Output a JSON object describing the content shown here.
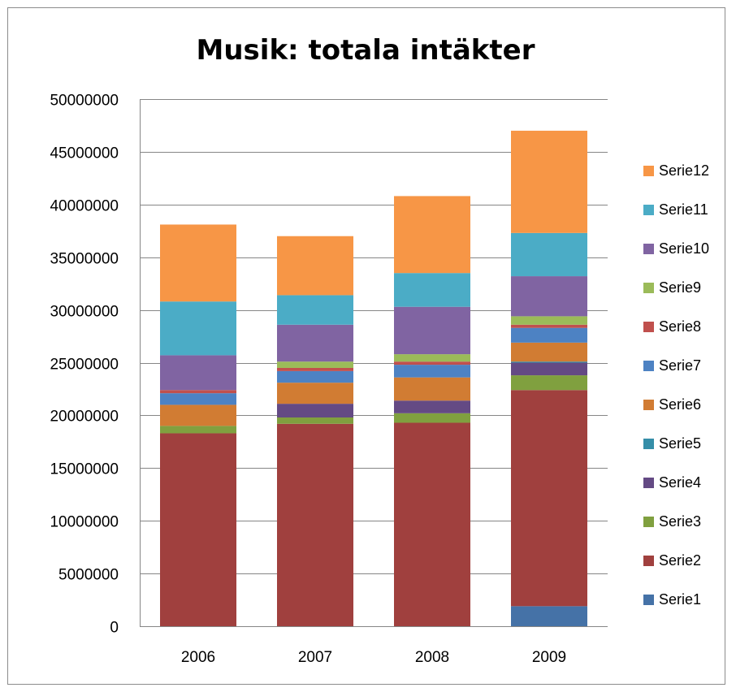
{
  "chart_data": {
    "type": "bar",
    "stacked": true,
    "title": "Musik: totala intäkter",
    "xlabel": "",
    "ylabel": "",
    "categories": [
      "2006",
      "2007",
      "2008",
      "2009"
    ],
    "ylim": [
      0,
      50000000
    ],
    "yticks": [
      0,
      5000000,
      10000000,
      15000000,
      20000000,
      25000000,
      30000000,
      35000000,
      40000000,
      45000000,
      50000000
    ],
    "grid": true,
    "legend_position": "right",
    "series": [
      {
        "name": "Serie1",
        "color": "#4572a7",
        "values": [
          0,
          0,
          0,
          1900000
        ]
      },
      {
        "name": "Serie2",
        "color": "#a0403e",
        "values": [
          18300000,
          19200000,
          19300000,
          20500000
        ]
      },
      {
        "name": "Serie3",
        "color": "#80a03f",
        "values": [
          700000,
          600000,
          900000,
          1400000
        ]
      },
      {
        "name": "Serie4",
        "color": "#644a84",
        "values": [
          0,
          1300000,
          1200000,
          1200000
        ]
      },
      {
        "name": "Serie5",
        "color": "#358ea8",
        "values": [
          0,
          0,
          0,
          100000
        ]
      },
      {
        "name": "Serie6",
        "color": "#d17c33",
        "values": [
          2000000,
          2000000,
          2200000,
          1800000
        ]
      },
      {
        "name": "Serie7",
        "color": "#4d82c3",
        "values": [
          1100000,
          1100000,
          1200000,
          1400000
        ]
      },
      {
        "name": "Serie8",
        "color": "#c0504d",
        "values": [
          300000,
          300000,
          300000,
          300000
        ]
      },
      {
        "name": "Serie9",
        "color": "#9bbb59",
        "values": [
          0,
          600000,
          700000,
          800000
        ]
      },
      {
        "name": "Serie10",
        "color": "#8064a2",
        "values": [
          3300000,
          3500000,
          4500000,
          3800000
        ]
      },
      {
        "name": "Serie11",
        "color": "#4bacc6",
        "values": [
          5100000,
          2800000,
          3200000,
          4100000
        ]
      },
      {
        "name": "Serie12",
        "color": "#f79646",
        "values": [
          7300000,
          5600000,
          7300000,
          9700000
        ]
      }
    ]
  }
}
